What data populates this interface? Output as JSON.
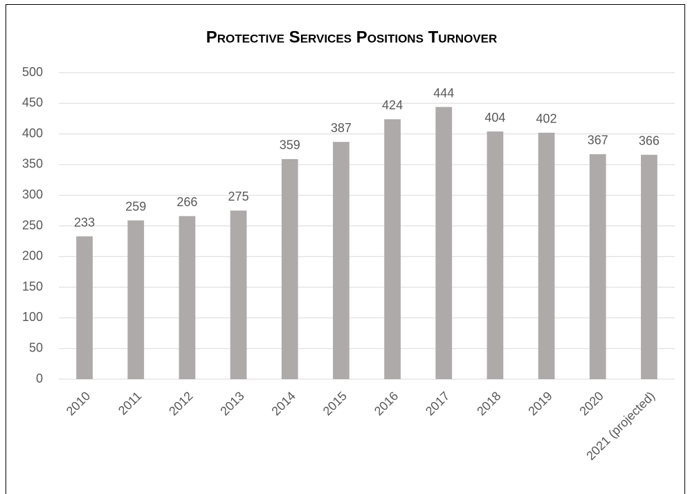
{
  "chart_data": {
    "type": "bar",
    "title": "Protective Services Positions Turnover",
    "categories": [
      "2010",
      "2011",
      "2012",
      "2013",
      "2014",
      "2015",
      "2016",
      "2017",
      "2018",
      "2019",
      "2020",
      "2021 (projected)"
    ],
    "values": [
      233,
      259,
      266,
      275,
      359,
      387,
      424,
      444,
      404,
      402,
      367,
      366
    ],
    "color": "#aeaaaa",
    "ylim": [
      0,
      500
    ],
    "yticks": [
      0,
      50,
      100,
      150,
      200,
      250,
      300,
      350,
      400,
      450,
      500
    ],
    "grid": true
  }
}
